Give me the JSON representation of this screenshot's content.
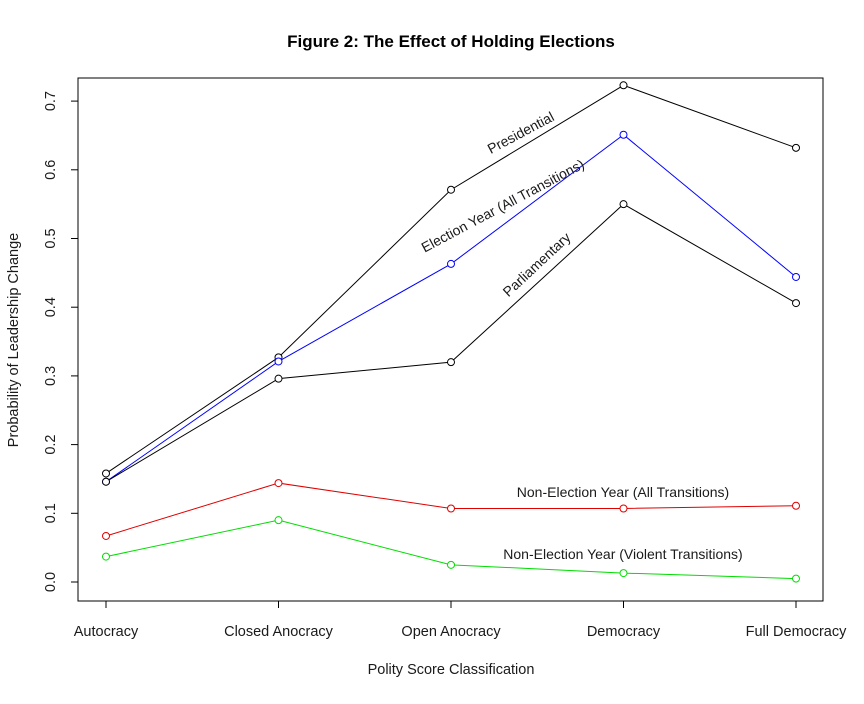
{
  "chart_data": {
    "type": "line",
    "title": "Figure 2: The Effect of Holding Elections",
    "xlabel": "Polity Score Classification",
    "ylabel": "Probability of Leadership Change",
    "categories": [
      "Autocracy",
      "Closed Anocracy",
      "Open Anocracy",
      "Democracy",
      "Full Democracy"
    ],
    "ylim": [
      -0.03,
      0.73
    ],
    "yticks": [
      "0.0",
      "0.1",
      "0.2",
      "0.3",
      "0.4",
      "0.5",
      "0.6",
      "0.7"
    ],
    "grid": false,
    "legend": "none (direct labels)",
    "series": [
      {
        "name": "Presidential",
        "color": "#000000",
        "values": [
          0.158,
          0.327,
          0.571,
          0.723,
          0.632
        ]
      },
      {
        "name": "Election Year (All Transitions)",
        "color": "#0000ff",
        "values": [
          0.146,
          0.321,
          0.463,
          0.651,
          0.444
        ]
      },
      {
        "name": "Parliamentary",
        "color": "#000000",
        "values": [
          0.146,
          0.296,
          0.32,
          0.55,
          0.406
        ]
      },
      {
        "name": "Non-Election Year (All Transitions)",
        "color": "#df0000",
        "values": [
          0.067,
          0.144,
          0.107,
          0.107,
          0.111
        ]
      },
      {
        "name": "Non-Election Year (Violent Transitions)",
        "color": "#00dd00",
        "values": [
          0.037,
          0.09,
          0.025,
          0.013,
          0.005
        ]
      }
    ]
  }
}
